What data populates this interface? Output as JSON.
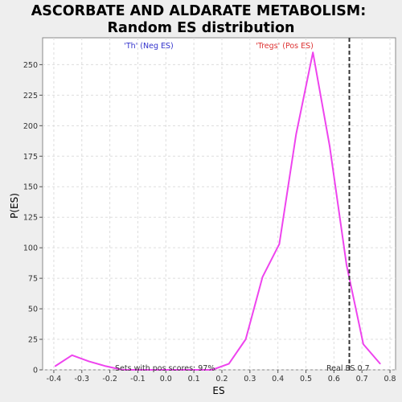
{
  "chart_data": {
    "type": "line",
    "title_line1": "ASCORBATE AND ALDARATE METABOLISM:",
    "title_line2": "Random ES distribution",
    "xlabel": "ES",
    "ylabel": "P(ES)",
    "xlim": [
      -0.44,
      0.82
    ],
    "ylim": [
      0,
      272
    ],
    "x_ticks": [
      -0.4,
      -0.3,
      -0.2,
      -0.1,
      0.0,
      0.1,
      0.2,
      0.3,
      0.4,
      0.5,
      0.6,
      0.7,
      0.8
    ],
    "x_tick_labels": [
      "-0.4",
      "-0.3",
      "-0.2",
      "-0.1",
      "0.0",
      "0.1",
      "0.2",
      "0.3",
      "0.4",
      "0.5",
      "0.6",
      "0.7",
      "0.8"
    ],
    "y_ticks": [
      0,
      25,
      50,
      75,
      100,
      125,
      150,
      175,
      200,
      225,
      250
    ],
    "y_tick_labels": [
      "0",
      "25",
      "50",
      "75",
      "100",
      "125",
      "150",
      "175",
      "200",
      "225",
      "250"
    ],
    "grid": true,
    "series": [
      {
        "name": "Random ES",
        "color": "#ee44ee",
        "x": [
          -0.395,
          -0.335,
          -0.275,
          -0.215,
          -0.155,
          -0.095,
          -0.035,
          0.025,
          0.085,
          0.145,
          0.165,
          0.225,
          0.285,
          0.345,
          0.405,
          0.465,
          0.525,
          0.585,
          0.645,
          0.705,
          0.765
        ],
        "y": [
          3,
          12,
          7,
          3,
          0,
          0,
          0,
          0,
          0,
          0,
          0,
          5,
          25,
          76,
          103,
          193,
          260,
          183,
          86,
          21,
          5
        ]
      }
    ],
    "real_es": 0.655,
    "annotations": {
      "neg_label": "'Th' (Neg ES)",
      "pos_label": "'Tregs' (Pos ES)",
      "pos_scores": "Sets with pos scores: 97%",
      "real_es_label": "Real ES 0.7"
    },
    "colors": {
      "neg_label": "#3333cc",
      "pos_label": "#dd3333",
      "line": "#ee44ee",
      "real_es_line": "#333333",
      "grid": "#dddddd",
      "plot_bg": "#ffffff",
      "page_bg": "#eeeeee"
    }
  }
}
